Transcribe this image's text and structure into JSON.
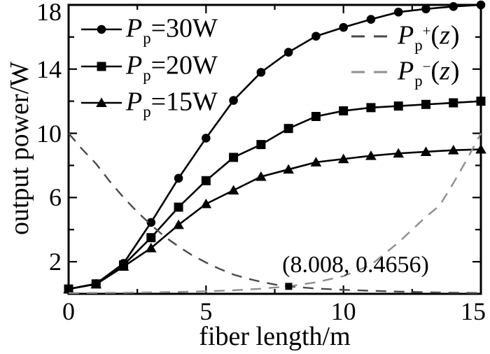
{
  "chart_data": {
    "type": "line",
    "title": "",
    "xlabel": "fiber length/m",
    "ylabel": "output power/W",
    "xlim": [
      0,
      15
    ],
    "ylim": [
      0,
      18
    ],
    "grid": false,
    "x_ticks": {
      "major": [
        0,
        5,
        10,
        15
      ],
      "minor": [
        2.5,
        7.5,
        12.5
      ]
    },
    "y_ticks": {
      "major": [
        2,
        6,
        10,
        14,
        18
      ],
      "minor": [
        4,
        8,
        12,
        16
      ]
    },
    "axis_color": "#000000",
    "x": [
      0,
      1,
      2,
      3,
      4,
      5,
      6,
      7,
      8,
      9,
      10,
      11,
      12,
      13,
      14,
      15
    ],
    "series": [
      {
        "name": "Pp=30W",
        "marker": "circle",
        "line": "solid",
        "color": "#000000",
        "values": [
          0.3,
          0.63,
          1.9,
          4.45,
          7.2,
          9.7,
          12.05,
          13.8,
          15.05,
          16.05,
          16.6,
          17.1,
          17.55,
          17.75,
          17.9,
          18.0
        ]
      },
      {
        "name": "Pp=20W",
        "marker": "square",
        "line": "solid",
        "color": "#000000",
        "values": [
          0.3,
          0.62,
          1.8,
          3.5,
          5.4,
          7.05,
          8.5,
          9.3,
          10.3,
          11.05,
          11.4,
          11.6,
          11.7,
          11.8,
          11.9,
          12.0
        ]
      },
      {
        "name": "Pp=15W",
        "marker": "triangle",
        "line": "solid",
        "color": "#000000",
        "values": [
          0.3,
          0.6,
          1.7,
          2.85,
          4.3,
          5.6,
          6.45,
          7.3,
          7.75,
          8.2,
          8.4,
          8.6,
          8.75,
          8.85,
          8.95,
          9.0
        ]
      },
      {
        "name": "Pp+(z)",
        "marker": "none",
        "line": "dashed",
        "color": "#4a4a4a",
        "points": [
          [
            0,
            10
          ],
          [
            0.5,
            9.0
          ],
          [
            1,
            8.1
          ],
          [
            1.5,
            7.0
          ],
          [
            2,
            6.0
          ],
          [
            2.5,
            5.1
          ],
          [
            3,
            4.3
          ],
          [
            3.5,
            3.55
          ],
          [
            4,
            2.95
          ],
          [
            4.5,
            2.4
          ],
          [
            5,
            1.95
          ],
          [
            5.5,
            1.55
          ],
          [
            6,
            1.2
          ],
          [
            6.5,
            0.95
          ],
          [
            7,
            0.75
          ],
          [
            7.5,
            0.58
          ],
          [
            8.008,
            0.4656
          ],
          [
            9,
            0.33
          ],
          [
            10,
            0.25
          ],
          [
            11,
            0.19
          ],
          [
            12,
            0.14
          ],
          [
            13,
            0.1
          ],
          [
            14,
            0.07
          ],
          [
            15,
            0.05
          ]
        ]
      },
      {
        "name": "Pp-(z)",
        "marker": "none",
        "line": "dashed",
        "color": "#8e8e8e",
        "points": [
          [
            0,
            0.05
          ],
          [
            2,
            0.07
          ],
          [
            4,
            0.12
          ],
          [
            5,
            0.16
          ],
          [
            6,
            0.22
          ],
          [
            7,
            0.32
          ],
          [
            8.008,
            0.4656
          ],
          [
            9,
            0.72
          ],
          [
            10,
            1.1
          ],
          [
            11,
            1.8
          ],
          [
            11.5,
            2.5
          ],
          [
            12,
            3.2
          ],
          [
            13,
            4.8
          ],
          [
            13.5,
            5.5
          ],
          [
            14,
            6.9
          ],
          [
            14.5,
            8.4
          ],
          [
            15,
            10
          ]
        ]
      }
    ],
    "annotation": {
      "text": "(8.008, 0.4656)",
      "x": 8.008,
      "y": 0.4656,
      "marker": "square"
    },
    "legend_series": {
      "position": "top-left",
      "entries": [
        {
          "marker": "circle",
          "tokens": [
            {
              "text": "P",
              "style": "italic"
            },
            {
              "text": "p",
              "style": "sub"
            },
            {
              "text": "=30W",
              "style": "normal"
            }
          ]
        },
        {
          "marker": "square",
          "tokens": [
            {
              "text": "P",
              "style": "italic"
            },
            {
              "text": "p",
              "style": "sub"
            },
            {
              "text": "=20W",
              "style": "normal"
            }
          ]
        },
        {
          "marker": "triangle",
          "tokens": [
            {
              "text": "P",
              "style": "italic"
            },
            {
              "text": "p",
              "style": "sub"
            },
            {
              "text": "=15W",
              "style": "normal"
            }
          ]
        }
      ]
    },
    "legend_pump": {
      "position": "top-right",
      "entries": [
        {
          "dash_color": "#4a4a4a",
          "tokens": [
            {
              "text": "P",
              "style": "italic"
            },
            {
              "text": "p",
              "style": "sub"
            },
            {
              "text": "+",
              "style": "sup"
            },
            {
              "text": "(",
              "style": "normal"
            },
            {
              "text": "z",
              "style": "italic"
            },
            {
              "text": ")",
              "style": "normal"
            }
          ]
        },
        {
          "dash_color": "#8e8e8e",
          "tokens": [
            {
              "text": "P",
              "style": "italic"
            },
            {
              "text": "p",
              "style": "sub"
            },
            {
              "text": "−",
              "style": "sup"
            },
            {
              "text": "(",
              "style": "normal"
            },
            {
              "text": "z",
              "style": "italic"
            },
            {
              "text": ")",
              "style": "normal"
            }
          ]
        }
      ]
    }
  }
}
